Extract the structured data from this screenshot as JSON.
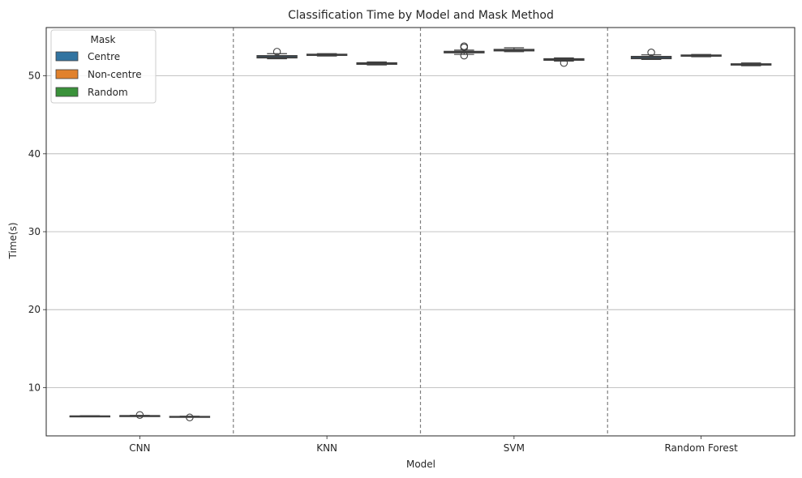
{
  "chart_data": {
    "type": "box",
    "title": "Classification Time by Model and Mask Method",
    "xlabel": "Model",
    "ylabel": "Time(s)",
    "categories": [
      "CNN",
      "KNN",
      "SVM",
      "Random Forest"
    ],
    "ylim": [
      3.8,
      56.2
    ],
    "yticks": [
      10,
      20,
      30,
      40,
      50
    ],
    "grid": "horizontal",
    "legend": {
      "title": "Mask",
      "position": "top-left"
    },
    "separators": "dashed vertical lines between model groups",
    "series": [
      {
        "name": "Centre",
        "color": "#3274a1",
        "boxes": [
          {
            "whislo": 6.28,
            "q1": 6.31,
            "med": 6.33,
            "q3": 6.36,
            "whishi": 6.39,
            "fliers": []
          },
          {
            "whislo": 52.2,
            "q1": 52.3,
            "med": 52.45,
            "q3": 52.6,
            "whishi": 52.85,
            "fliers": [
              53.1
            ]
          },
          {
            "whislo": 52.75,
            "q1": 52.95,
            "med": 53.05,
            "q3": 53.15,
            "whishi": 53.3,
            "fliers": [
              53.8,
              53.65,
              52.6
            ]
          },
          {
            "whislo": 52.1,
            "q1": 52.2,
            "med": 52.35,
            "q3": 52.5,
            "whishi": 52.7,
            "fliers": [
              53.0
            ]
          }
        ]
      },
      {
        "name": "Non-centre",
        "color": "#e1812c",
        "boxes": [
          {
            "whislo": 6.33,
            "q1": 6.36,
            "med": 6.38,
            "q3": 6.4,
            "whishi": 6.43,
            "fliers": [
              6.48
            ]
          },
          {
            "whislo": 52.55,
            "q1": 52.62,
            "med": 52.7,
            "q3": 52.78,
            "whishi": 52.85,
            "fliers": []
          },
          {
            "whislo": 53.1,
            "q1": 53.2,
            "med": 53.3,
            "q3": 53.4,
            "whishi": 53.6,
            "fliers": []
          },
          {
            "whislo": 52.45,
            "q1": 52.52,
            "med": 52.6,
            "q3": 52.68,
            "whishi": 52.75,
            "fliers": []
          }
        ]
      },
      {
        "name": "Random",
        "color": "#3a923a",
        "boxes": [
          {
            "whislo": 6.2,
            "q1": 6.24,
            "med": 6.27,
            "q3": 6.3,
            "whishi": 6.33,
            "fliers": [
              6.16
            ]
          },
          {
            "whislo": 51.4,
            "q1": 51.48,
            "med": 51.58,
            "q3": 51.68,
            "whishi": 51.78,
            "fliers": []
          },
          {
            "whislo": 51.9,
            "q1": 52.0,
            "med": 52.1,
            "q3": 52.2,
            "whishi": 52.3,
            "fliers": [
              51.65
            ]
          },
          {
            "whislo": 51.3,
            "q1": 51.38,
            "med": 51.46,
            "q3": 51.55,
            "whishi": 51.65,
            "fliers": []
          }
        ]
      }
    ]
  }
}
